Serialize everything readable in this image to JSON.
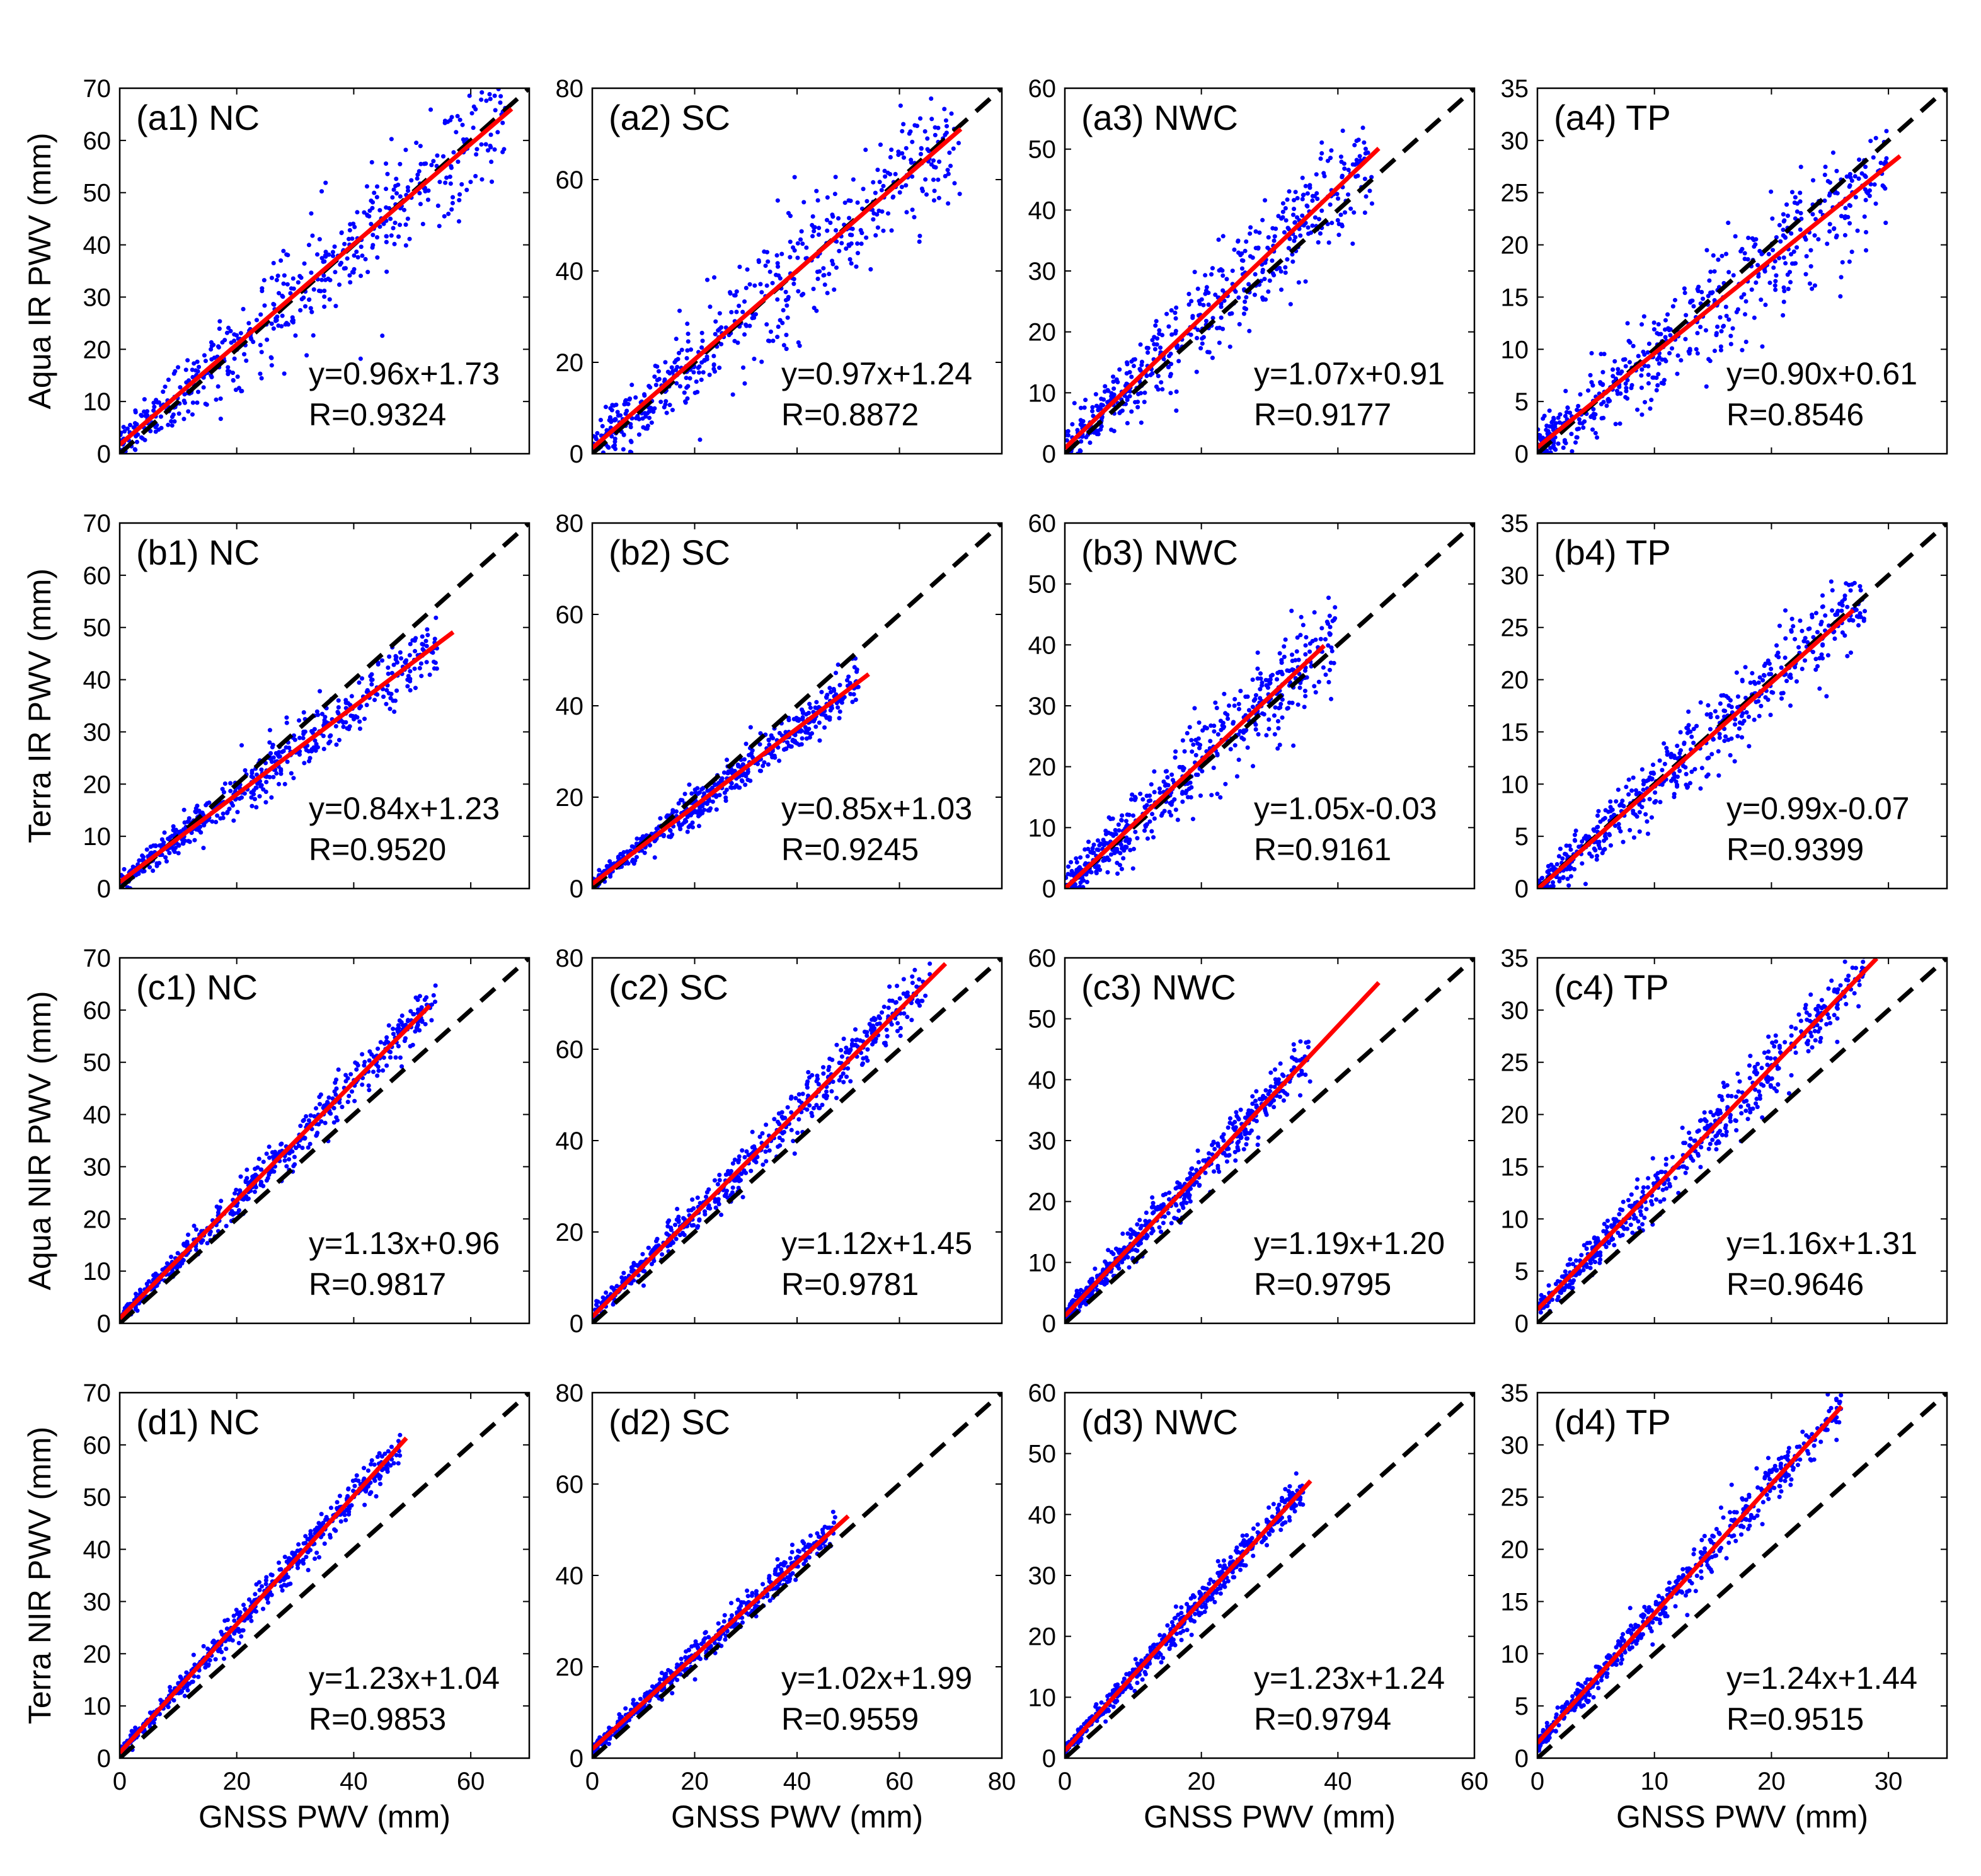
{
  "figure": {
    "x_axis_title": "GNSS PWV (mm)",
    "row_y_titles": [
      "Aqua IR PWV (mm)",
      "Terra IR PWV (mm)",
      "Aqua NIR PWV (mm)",
      "Terra NIR PWV (mm)"
    ],
    "colors": {
      "scatter": "#0000ff",
      "fit": "#ff0000",
      "reference": "#000000"
    }
  },
  "chart_data": [
    {
      "type": "scatter",
      "title": "(a1) NC",
      "ylabel": "Aqua IR PWV (mm)",
      "xlabel": "",
      "xlim": [
        0,
        70
      ],
      "ylim": [
        0,
        70
      ],
      "xticks": [
        0,
        20,
        40,
        60
      ],
      "yticks": [
        0,
        10,
        20,
        30,
        40,
        50,
        60,
        70
      ],
      "fit": {
        "slope": 0.96,
        "intercept": 1.73,
        "x_end": 67,
        "equation": "y=0.96x+1.73"
      },
      "R": "R=0.9324",
      "cloud": {
        "x_max": 66,
        "spread": 10
      }
    },
    {
      "type": "scatter",
      "title": "(a2) SC",
      "ylabel": "",
      "xlabel": "",
      "xlim": [
        0,
        80
      ],
      "ylim": [
        0,
        80
      ],
      "xticks": [
        0,
        20,
        40,
        60,
        80
      ],
      "yticks": [
        0,
        20,
        40,
        60,
        80
      ],
      "fit": {
        "slope": 0.97,
        "intercept": 1.24,
        "x_end": 72,
        "equation": "y=0.97x+1.24"
      },
      "R": "R=0.8872",
      "cloud": {
        "x_max": 72,
        "spread": 12
      }
    },
    {
      "type": "scatter",
      "title": "(a3) NWC",
      "ylabel": "",
      "xlabel": "",
      "xlim": [
        0,
        60
      ],
      "ylim": [
        0,
        60
      ],
      "xticks": [
        0,
        20,
        40,
        60
      ],
      "yticks": [
        0,
        10,
        20,
        30,
        40,
        50,
        60
      ],
      "fit": {
        "slope": 1.07,
        "intercept": 0.91,
        "x_end": 46,
        "equation": "y=1.07x+0.91"
      },
      "R": "R=0.9177",
      "cloud": {
        "x_max": 45,
        "spread": 8
      }
    },
    {
      "type": "scatter",
      "title": "(a4) TP",
      "ylabel": "",
      "xlabel": "",
      "xlim": [
        0,
        35
      ],
      "ylim": [
        0,
        35
      ],
      "xticks": [
        0,
        10,
        20,
        30
      ],
      "yticks": [
        0,
        5,
        10,
        15,
        20,
        25,
        30,
        35
      ],
      "fit": {
        "slope": 0.9,
        "intercept": 0.61,
        "x_end": 31,
        "equation": "y=0.90x+0.61"
      },
      "R": "R=0.8546",
      "cloud": {
        "x_max": 30,
        "spread": 5
      }
    },
    {
      "type": "scatter",
      "title": "(b1) NC",
      "ylabel": "Terra IR PWV (mm)",
      "xlabel": "",
      "xlim": [
        0,
        70
      ],
      "ylim": [
        0,
        70
      ],
      "xticks": [
        0,
        20,
        40,
        60
      ],
      "yticks": [
        0,
        10,
        20,
        30,
        40,
        50,
        60,
        70
      ],
      "fit": {
        "slope": 0.84,
        "intercept": 1.23,
        "x_end": 57,
        "equation": "y=0.84x+1.23"
      },
      "R": "R=0.9520",
      "cloud": {
        "x_max": 55,
        "spread": 5
      }
    },
    {
      "type": "scatter",
      "title": "(b2) SC",
      "ylabel": "",
      "xlabel": "",
      "xlim": [
        0,
        80
      ],
      "ylim": [
        0,
        80
      ],
      "xticks": [
        0,
        20,
        40,
        60,
        80
      ],
      "yticks": [
        0,
        20,
        40,
        60,
        80
      ],
      "fit": {
        "slope": 0.85,
        "intercept": 1.03,
        "x_end": 54,
        "equation": "y=0.85x+1.03"
      },
      "R": "R=0.9245",
      "cloud": {
        "x_max": 52,
        "spread": 4
      }
    },
    {
      "type": "scatter",
      "title": "(b3) NWC",
      "ylabel": "",
      "xlabel": "",
      "xlim": [
        0,
        60
      ],
      "ylim": [
        0,
        60
      ],
      "xticks": [
        0,
        20,
        40,
        60
      ],
      "yticks": [
        0,
        10,
        20,
        30,
        40,
        50,
        60
      ],
      "fit": {
        "slope": 1.05,
        "intercept": -0.03,
        "x_end": 38,
        "equation": "y=1.05x-0.03"
      },
      "R": "R=0.9161",
      "cloud": {
        "x_max": 40,
        "spread": 7
      }
    },
    {
      "type": "scatter",
      "title": "(b4) TP",
      "ylabel": "",
      "xlabel": "",
      "xlim": [
        0,
        35
      ],
      "ylim": [
        0,
        35
      ],
      "xticks": [
        0,
        10,
        20,
        30
      ],
      "yticks": [
        0,
        5,
        10,
        15,
        20,
        25,
        30,
        35
      ],
      "fit": {
        "slope": 0.99,
        "intercept": -0.07,
        "x_end": 27,
        "equation": "y=0.99x-0.07"
      },
      "R": "R=0.9399",
      "cloud": {
        "x_max": 28,
        "spread": 3.5
      }
    },
    {
      "type": "scatter",
      "title": "(c1) NC",
      "ylabel": "Aqua NIR PWV (mm)",
      "xlabel": "",
      "xlim": [
        0,
        70
      ],
      "ylim": [
        0,
        70
      ],
      "xticks": [
        0,
        20,
        40,
        60
      ],
      "yticks": [
        0,
        10,
        20,
        30,
        40,
        50,
        60,
        70
      ],
      "fit": {
        "slope": 1.13,
        "intercept": 0.96,
        "x_end": 53,
        "equation": "y=1.13x+0.96"
      },
      "R": "R=0.9817",
      "cloud": {
        "x_max": 54,
        "spread": 3.5
      }
    },
    {
      "type": "scatter",
      "title": "(c2) SC",
      "ylabel": "",
      "xlabel": "",
      "xlim": [
        0,
        80
      ],
      "ylim": [
        0,
        80
      ],
      "xticks": [
        0,
        20,
        40,
        60,
        80
      ],
      "yticks": [
        0,
        20,
        40,
        60,
        80
      ],
      "fit": {
        "slope": 1.12,
        "intercept": 1.45,
        "x_end": 69,
        "equation": "y=1.12x+1.45"
      },
      "R": "R=0.9781",
      "cloud": {
        "x_max": 66,
        "spread": 5
      }
    },
    {
      "type": "scatter",
      "title": "(c3) NWC",
      "ylabel": "",
      "xlabel": "",
      "xlim": [
        0,
        60
      ],
      "ylim": [
        0,
        60
      ],
      "xticks": [
        0,
        20,
        40,
        60
      ],
      "yticks": [
        0,
        10,
        20,
        30,
        40,
        50,
        60
      ],
      "fit": {
        "slope": 1.19,
        "intercept": 1.2,
        "x_end": 46,
        "equation": "y=1.19x+1.20"
      },
      "R": "R=0.9795",
      "cloud": {
        "x_max": 36,
        "spread": 3.5
      }
    },
    {
      "type": "scatter",
      "title": "(c4) TP",
      "ylabel": "",
      "xlabel": "",
      "xlim": [
        0,
        35
      ],
      "ylim": [
        0,
        35
      ],
      "xticks": [
        0,
        10,
        20,
        30
      ],
      "yticks": [
        0,
        5,
        10,
        15,
        20,
        25,
        30,
        35
      ],
      "fit": {
        "slope": 1.16,
        "intercept": 1.31,
        "x_end": 29,
        "equation": "y=1.16x+1.31"
      },
      "R": "R=0.9646",
      "cloud": {
        "x_max": 28,
        "spread": 2.5
      }
    },
    {
      "type": "scatter",
      "title": "(d1) NC",
      "ylabel": "Terra NIR PWV (mm)",
      "xlabel": "GNSS PWV (mm)",
      "xlim": [
        0,
        70
      ],
      "ylim": [
        0,
        70
      ],
      "xticks": [
        0,
        20,
        40,
        60
      ],
      "yticks": [
        0,
        10,
        20,
        30,
        40,
        50,
        60,
        70
      ],
      "fit": {
        "slope": 1.23,
        "intercept": 1.04,
        "x_end": 49,
        "equation": "y=1.23x+1.04"
      },
      "R": "R=0.9853",
      "cloud": {
        "x_max": 48,
        "spread": 3
      }
    },
    {
      "type": "scatter",
      "title": "(d2) SC",
      "ylabel": "",
      "xlabel": "GNSS PWV (mm)",
      "xlim": [
        0,
        80
      ],
      "ylim": [
        0,
        80
      ],
      "xticks": [
        0,
        20,
        40,
        60,
        80
      ],
      "yticks": [
        0,
        20,
        40,
        60,
        80
      ],
      "fit": {
        "slope": 1.02,
        "intercept": 1.99,
        "x_end": 50,
        "equation": "y=1.02x+1.99"
      },
      "R": "R=0.9559",
      "cloud": {
        "x_max": 48,
        "spread": 3
      }
    },
    {
      "type": "scatter",
      "title": "(d3) NWC",
      "ylabel": "",
      "xlabel": "GNSS PWV (mm)",
      "xlim": [
        0,
        60
      ],
      "ylim": [
        0,
        60
      ],
      "xticks": [
        0,
        20,
        40,
        60
      ],
      "yticks": [
        0,
        10,
        20,
        30,
        40,
        50,
        60
      ],
      "fit": {
        "slope": 1.23,
        "intercept": 1.24,
        "x_end": 36,
        "equation": "y=1.23x+1.24"
      },
      "R": "R=0.9794",
      "cloud": {
        "x_max": 35,
        "spread": 2.5
      }
    },
    {
      "type": "scatter",
      "title": "(d4) TP",
      "ylabel": "",
      "xlabel": "GNSS PWV (mm)",
      "xlim": [
        0,
        35
      ],
      "ylim": [
        0,
        35
      ],
      "xticks": [
        0,
        10,
        20,
        30
      ],
      "yticks": [
        0,
        5,
        10,
        15,
        20,
        25,
        30,
        35
      ],
      "fit": {
        "slope": 1.24,
        "intercept": 1.44,
        "x_end": 26,
        "equation": "y=1.24x+1.44"
      },
      "R": "R=0.9515",
      "cloud": {
        "x_max": 26,
        "spread": 2
      }
    }
  ]
}
